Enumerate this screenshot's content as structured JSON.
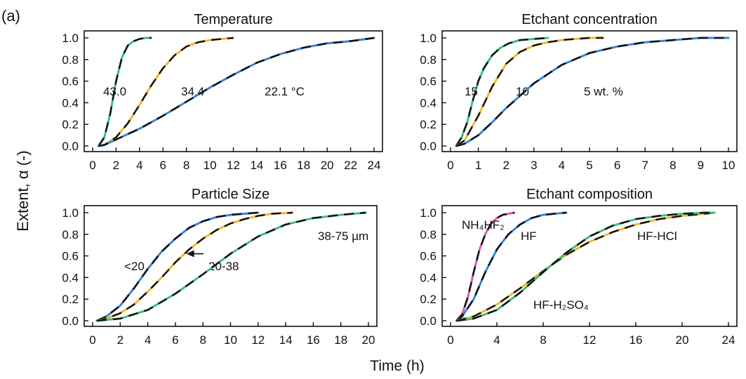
{
  "figure": {
    "panel_label": "(a)",
    "shared_ylabel": "Extent, α (-)",
    "shared_xlabel": "Time (h)",
    "line_colors": {
      "green": "#3fbf7f",
      "orange": "#f2b632",
      "blue": "#3a84d8",
      "pink": "#d95ab8",
      "fit": "#111111"
    }
  },
  "chart_data": [
    {
      "type": "line",
      "title": "Temperature",
      "xlim": [
        0,
        24
      ],
      "ylim": [
        0,
        1
      ],
      "xticks": [
        "0",
        "2",
        "4",
        "6",
        "8",
        "10",
        "12",
        "14",
        "16",
        "18",
        "20",
        "22",
        "24"
      ],
      "yticks": [
        "0.0",
        "0.2",
        "0.4",
        "0.6",
        "0.8",
        "1.0"
      ],
      "fit_line": "dashed black model fit overlaid on each series",
      "series": [
        {
          "name": "43.0",
          "color": "green",
          "x": [
            0.5,
            1.0,
            1.5,
            2.0,
            2.5,
            3.0,
            3.5,
            4.0,
            4.5,
            5.0
          ],
          "y": [
            0.0,
            0.08,
            0.3,
            0.6,
            0.82,
            0.93,
            0.97,
            0.99,
            1.0,
            1.0
          ]
        },
        {
          "name": "34.4",
          "color": "orange",
          "x": [
            0.5,
            1,
            2,
            3,
            4,
            5,
            6,
            7,
            8,
            9,
            10,
            11,
            12
          ],
          "y": [
            0.0,
            0.01,
            0.08,
            0.21,
            0.38,
            0.56,
            0.72,
            0.84,
            0.92,
            0.96,
            0.98,
            0.99,
            1.0
          ]
        },
        {
          "name": "22.1 °C",
          "color": "blue",
          "x": [
            0.5,
            1,
            2,
            4,
            6,
            8,
            10,
            12,
            14,
            16,
            18,
            20,
            22,
            24
          ],
          "y": [
            0.0,
            0.01,
            0.06,
            0.16,
            0.28,
            0.41,
            0.54,
            0.66,
            0.77,
            0.85,
            0.91,
            0.95,
            0.97,
            1.0
          ]
        }
      ]
    },
    {
      "type": "line",
      "title": "Etchant concentration",
      "xlim": [
        0,
        10
      ],
      "ylim": [
        0,
        1
      ],
      "xticks": [
        "0",
        "1",
        "2",
        "3",
        "4",
        "5",
        "6",
        "7",
        "8",
        "9",
        "10"
      ],
      "yticks": [
        "0.0",
        "0.2",
        "0.4",
        "0.6",
        "0.8",
        "1.0"
      ],
      "fit_line": "dashed black model fit overlaid on each series",
      "series": [
        {
          "name": "15",
          "color": "green",
          "x": [
            0.2,
            0.4,
            0.6,
            0.8,
            1.0,
            1.2,
            1.5,
            1.8,
            2.1,
            2.5,
            3.0,
            3.5
          ],
          "y": [
            0.0,
            0.08,
            0.22,
            0.42,
            0.6,
            0.72,
            0.84,
            0.91,
            0.95,
            0.98,
            0.99,
            1.0
          ]
        },
        {
          "name": "10",
          "color": "orange",
          "x": [
            0.2,
            0.5,
            1.0,
            1.5,
            2.0,
            2.5,
            3.0,
            3.5,
            4.0,
            4.5,
            5.0,
            5.5
          ],
          "y": [
            0.0,
            0.05,
            0.28,
            0.55,
            0.76,
            0.87,
            0.93,
            0.96,
            0.98,
            0.99,
            1.0,
            1.0
          ]
        },
        {
          "name": "5 wt. %",
          "color": "blue",
          "x": [
            0.2,
            0.5,
            1,
            1.5,
            2,
            3,
            4,
            5,
            6,
            7,
            8,
            9,
            10
          ],
          "y": [
            0.0,
            0.02,
            0.1,
            0.22,
            0.35,
            0.58,
            0.75,
            0.86,
            0.92,
            0.96,
            0.98,
            1.0,
            1.0
          ]
        }
      ]
    },
    {
      "type": "line",
      "title": "Particle Size",
      "xlim": [
        0,
        20
      ],
      "ylim": [
        0,
        1
      ],
      "xticks": [
        "0",
        "2",
        "4",
        "6",
        "8",
        "10",
        "12",
        "14",
        "16",
        "18",
        "20"
      ],
      "yticks": [
        "0.0",
        "0.2",
        "0.4",
        "0.6",
        "0.8",
        "1.0"
      ],
      "fit_line": "dashed black model fit overlaid on each series",
      "series": [
        {
          "name": "<20",
          "color": "blue",
          "x": [
            0.3,
            1,
            2,
            3,
            4,
            5,
            6,
            7,
            8,
            9,
            10,
            11,
            12
          ],
          "y": [
            0.0,
            0.04,
            0.14,
            0.3,
            0.48,
            0.64,
            0.76,
            0.86,
            0.92,
            0.96,
            0.98,
            0.99,
            1.0
          ]
        },
        {
          "name": "20-38",
          "color": "orange",
          "x": [
            0.3,
            1,
            2,
            3,
            4,
            5,
            6,
            7,
            8,
            9,
            10,
            11,
            12,
            13,
            14.5
          ],
          "y": [
            0.0,
            0.02,
            0.07,
            0.15,
            0.27,
            0.4,
            0.54,
            0.66,
            0.76,
            0.84,
            0.9,
            0.94,
            0.97,
            0.99,
            1.0
          ]
        },
        {
          "name": "38-75 µm",
          "color": "green",
          "x": [
            0.3,
            2,
            4,
            6,
            8,
            10,
            12,
            14,
            16,
            18,
            19.8
          ],
          "y": [
            0.0,
            0.02,
            0.1,
            0.25,
            0.43,
            0.62,
            0.78,
            0.89,
            0.95,
            0.98,
            1.0
          ]
        }
      ],
      "annotations": [
        {
          "text": "20-38",
          "arrow_to": [
            6.8,
            0.62
          ]
        }
      ]
    },
    {
      "type": "line",
      "title": "Etchant composition",
      "xlim": [
        0,
        24
      ],
      "ylim": [
        0,
        1
      ],
      "xticks": [
        "0",
        "4",
        "8",
        "12",
        "16",
        "20",
        "24"
      ],
      "yticks": [
        "0.0",
        "0.2",
        "0.4",
        "0.6",
        "0.8",
        "1.0"
      ],
      "fit_line": "dashed black model fit overlaid on each series",
      "series": [
        {
          "name": "NH₄HF₂",
          "color": "pink",
          "x": [
            0.5,
            1,
            1.5,
            2,
            2.5,
            3,
            3.5,
            4,
            4.5,
            5.5
          ],
          "y": [
            0.0,
            0.06,
            0.22,
            0.45,
            0.66,
            0.8,
            0.9,
            0.95,
            0.98,
            1.0
          ]
        },
        {
          "name": "HF",
          "color": "blue",
          "x": [
            0.5,
            1,
            2,
            3,
            4,
            5,
            6,
            7,
            8,
            9,
            10
          ],
          "y": [
            0.0,
            0.04,
            0.2,
            0.45,
            0.66,
            0.8,
            0.89,
            0.95,
            0.98,
            0.99,
            1.0
          ]
        },
        {
          "name": "HF-HCl",
          "color": "orange",
          "x": [
            0.5,
            2,
            4,
            6,
            8,
            10,
            12,
            14,
            16,
            18,
            20,
            22,
            22.8
          ],
          "y": [
            0.0,
            0.04,
            0.15,
            0.3,
            0.46,
            0.61,
            0.73,
            0.82,
            0.89,
            0.94,
            0.97,
            0.99,
            1.0
          ]
        },
        {
          "name": "HF-H₂SO₄",
          "color": "green",
          "x": [
            0.5,
            2,
            4,
            6,
            8,
            10,
            12,
            14,
            16,
            18,
            20,
            22,
            22.8
          ],
          "y": [
            0.0,
            0.02,
            0.1,
            0.26,
            0.45,
            0.63,
            0.78,
            0.88,
            0.94,
            0.97,
            0.99,
            1.0,
            1.0
          ]
        }
      ]
    }
  ]
}
